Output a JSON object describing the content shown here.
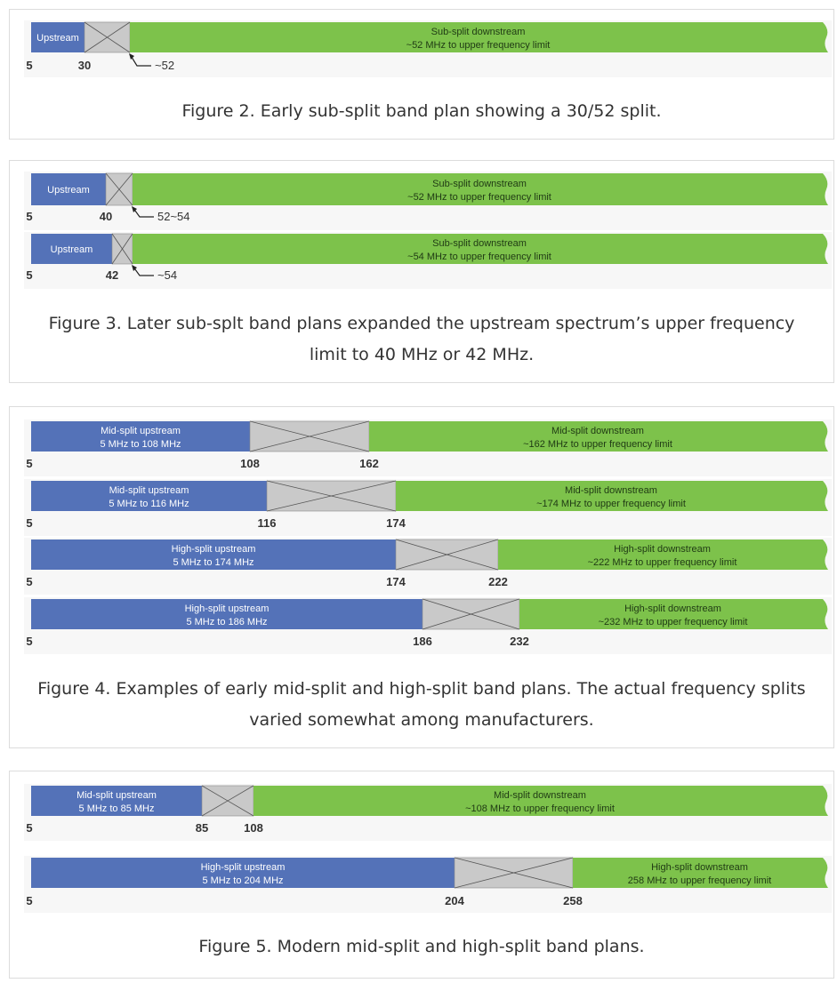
{
  "colors": {
    "upstream": "#5472b8",
    "guard": "#c9c9c9",
    "downstream": "#7dc24b",
    "text_dark": "#333333"
  },
  "figures": [
    {
      "id": "fig2",
      "caption": "Figure 2. Early sub-split band plan showing a 30/52 split.",
      "rows": [
        {
          "up_label": [
            "Upstream"
          ],
          "down_label": [
            "Sub-split downstream",
            "~52 MHz to upper frequency limit"
          ],
          "start": "5",
          "split": "30",
          "arrow_label": "~52"
        }
      ]
    },
    {
      "id": "fig3",
      "caption": "Figure 3. Later sub-splt band plans expanded the upstream spectrum’s upper frequency limit to 40 MHz or 42 MHz.",
      "rows": [
        {
          "up_label": [
            "Upstream"
          ],
          "down_label": [
            "Sub-split downstream",
            "~52 MHz to upper frequency limit"
          ],
          "start": "5",
          "split": "40",
          "arrow_label": "52~54"
        },
        {
          "up_label": [
            "Upstream"
          ],
          "down_label": [
            "Sub-split downstream",
            "~54 MHz to upper frequency limit"
          ],
          "start": "5",
          "split": "42",
          "arrow_label": "~54"
        }
      ]
    },
    {
      "id": "fig4",
      "caption": "Figure 4. Examples of early mid-split and high-split band plans. The actual frequency splits varied somewhat among manufacturers.",
      "rows": [
        {
          "up_label": [
            "Mid-split upstream",
            "5 MHz to 108 MHz"
          ],
          "down_label": [
            "Mid-split downstream",
            "~162 MHz to upper frequency limit"
          ],
          "start": "5",
          "split": "108",
          "down_start": "162"
        },
        {
          "up_label": [
            "Mid-split upstream",
            "5 MHz to 116 MHz"
          ],
          "down_label": [
            "Mid-split downstream",
            "~174 MHz to upper frequency limit"
          ],
          "start": "5",
          "split": "116",
          "down_start": "174"
        },
        {
          "up_label": [
            "High-split upstream",
            "5 MHz to 174 MHz"
          ],
          "down_label": [
            "High-split downstream",
            "~222 MHz to upper frequency limit"
          ],
          "start": "5",
          "split": "174",
          "down_start": "222"
        },
        {
          "up_label": [
            "High-split upstream",
            "5 MHz to 186 MHz"
          ],
          "down_label": [
            "High-split downstream",
            "~232 MHz to upper frequency limit"
          ],
          "start": "5",
          "split": "186",
          "down_start": "232"
        }
      ]
    },
    {
      "id": "fig5",
      "caption": "Figure 5. Modern mid-split and high-split band plans.",
      "rows": [
        {
          "up_label": [
            "Mid-split upstream",
            "5 MHz to 85 MHz"
          ],
          "down_label": [
            "Mid-split downstream",
            "~108 MHz to upper frequency limit"
          ],
          "start": "5",
          "split": "85",
          "down_start": "108"
        },
        {
          "up_label": [
            "High-split upstream",
            "5 MHz to 204 MHz"
          ],
          "down_label": [
            "High-split downstream",
            "258 MHz to upper frequency limit"
          ],
          "start": "5",
          "split": "204",
          "down_start": "258"
        }
      ]
    }
  ]
}
